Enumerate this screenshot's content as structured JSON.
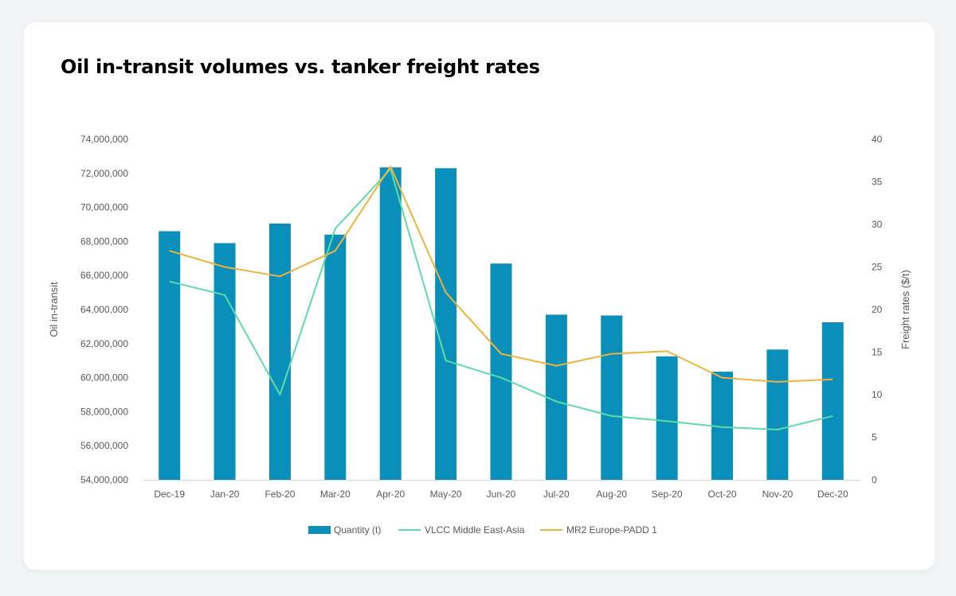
{
  "card": {
    "title": "Oil in-transit volumes vs. tanker freight rates"
  },
  "colors": {
    "bar": "#0a8fbb",
    "vlcc": "#5fdca5",
    "mr2": "#f0b23c",
    "grid": "#d9d9d9",
    "text": "#595959"
  },
  "chart_data": {
    "type": "bar",
    "title": "Oil in-transit volumes vs. tanker freight rates",
    "categories": [
      "Dec-19",
      "Jan-20",
      "Feb-20",
      "Mar-20",
      "Apr-20",
      "May-20",
      "Jun-20",
      "Jul-20",
      "Aug-20",
      "Sep-20",
      "Oct-20",
      "Nov-20",
      "Dec-20"
    ],
    "ylabel": "Oil in-transit",
    "y2label": "Freight rates ($/t)",
    "ylim": [
      54000000,
      74000000
    ],
    "y2lim": [
      0,
      40
    ],
    "yticks": [
      "54,000,000",
      "56,000,000",
      "58,000,000",
      "60,000,000",
      "62,000,000",
      "64,000,000",
      "66,000,000",
      "68,000,000",
      "70,000,000",
      "72,000,000",
      "74,000,000"
    ],
    "y2ticks": [
      "0",
      "5",
      "10",
      "15",
      "20",
      "25",
      "30",
      "35",
      "40"
    ],
    "grid": false,
    "legend_position": "bottom",
    "series": [
      {
        "name": "Quantity (t)",
        "type": "bar",
        "axis": "left",
        "values": [
          68600000,
          67900000,
          69050000,
          68400000,
          72350000,
          72300000,
          66700000,
          63700000,
          63650000,
          61250000,
          60350000,
          61650000,
          63250000
        ]
      },
      {
        "name": "VLCC Middle East-Asia",
        "type": "line",
        "axis": "right",
        "values": [
          23.3,
          21.7,
          10.0,
          29.5,
          36.5,
          14.0,
          12.0,
          9.2,
          7.5,
          6.9,
          6.2,
          5.9,
          7.5
        ]
      },
      {
        "name": "MR2 Europe-PADD 1",
        "type": "line",
        "axis": "right",
        "values": [
          26.9,
          25.0,
          23.9,
          26.9,
          36.8,
          22.0,
          14.8,
          13.4,
          14.8,
          15.1,
          12.0,
          11.5,
          11.8
        ]
      }
    ]
  }
}
